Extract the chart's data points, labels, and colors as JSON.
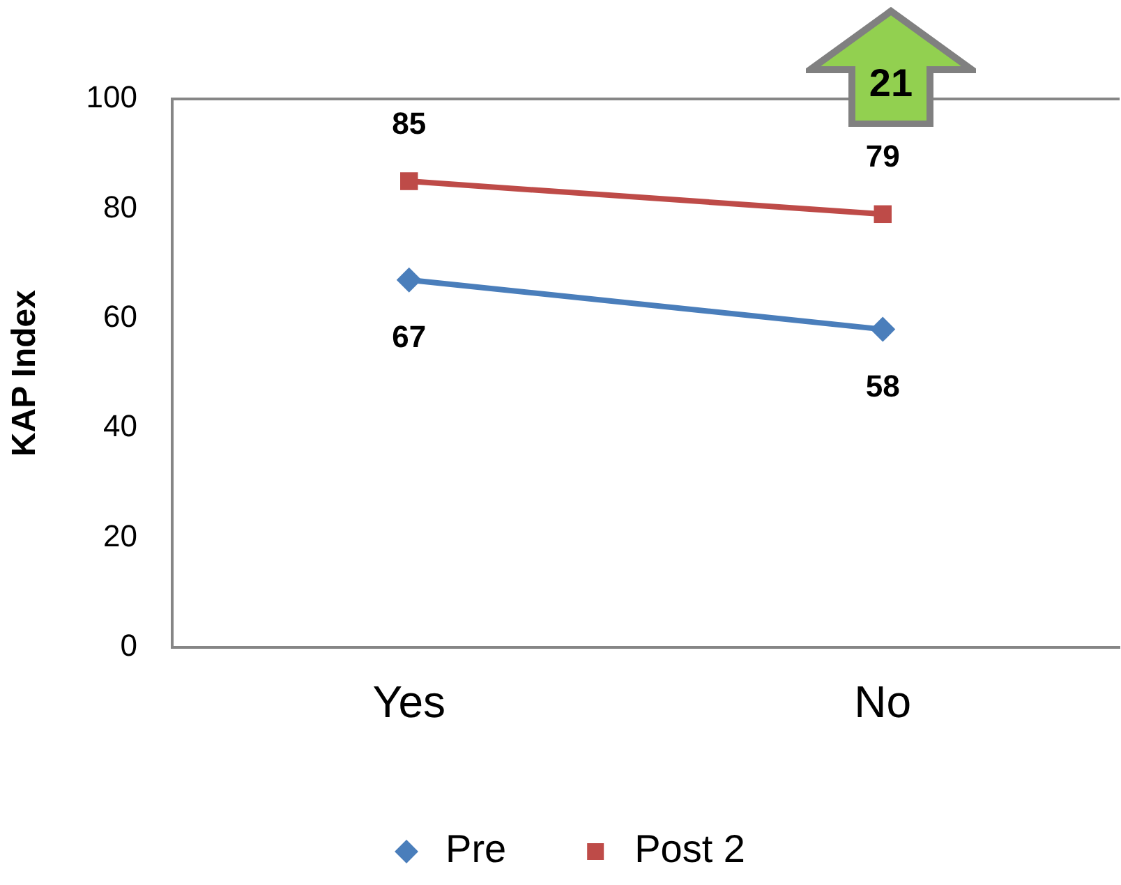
{
  "chart_data": {
    "type": "line",
    "ylabel": "KAP Index",
    "categories": [
      "Yes",
      "No"
    ],
    "series": [
      {
        "name": "Pre",
        "color": "#4a7ebb",
        "values": [
          67,
          58
        ],
        "marker": "diamond"
      },
      {
        "name": "Post 2",
        "color": "#be4b48",
        "values": [
          85,
          79
        ],
        "marker": "square"
      }
    ],
    "ylim": [
      0,
      100
    ],
    "yticks": [
      0,
      20,
      40,
      60,
      80,
      100
    ],
    "grid": false,
    "legend": "bottom",
    "data_labels": true,
    "line_style": "solid",
    "annotations": [
      "21"
    ]
  }
}
